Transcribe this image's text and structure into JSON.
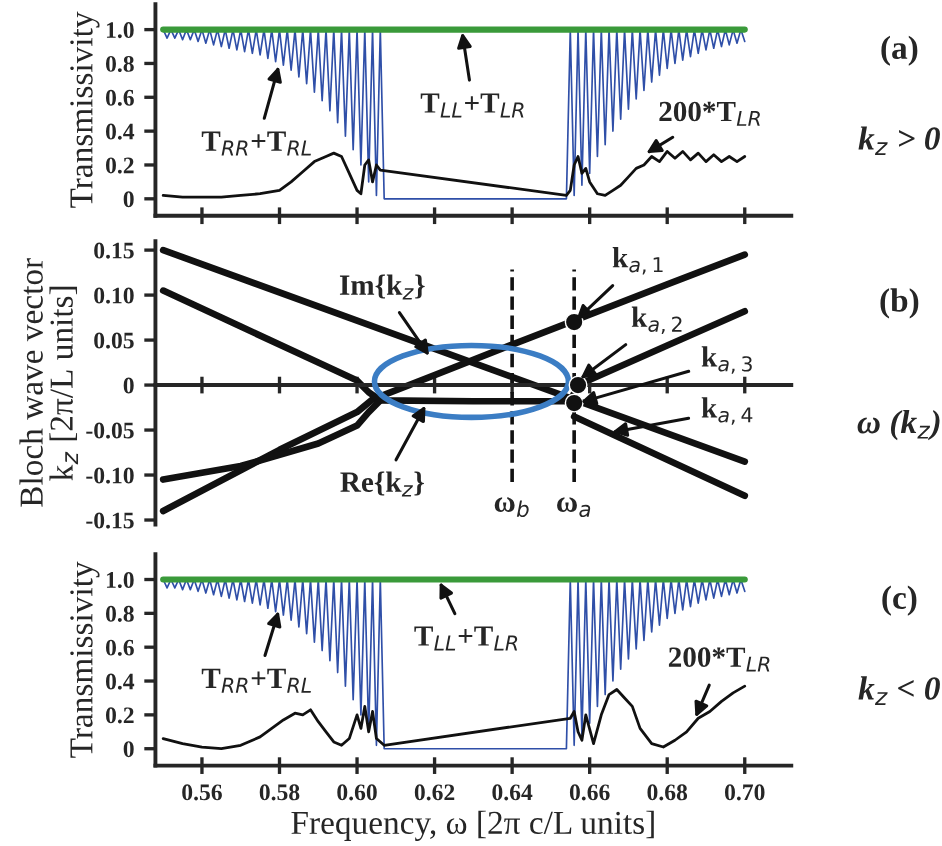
{
  "chart_data": [
    {
      "type": "line",
      "ylabel": "Transmissivity",
      "xlim": [
        0.548,
        0.712
      ],
      "ylim": [
        -0.1,
        1.15
      ],
      "xticks": [
        {
          "value": 0.56,
          "label": null
        },
        {
          "value": 0.58,
          "label": null
        },
        {
          "value": 0.6,
          "label": null
        },
        {
          "value": 0.62,
          "label": null
        },
        {
          "value": 0.64,
          "label": null
        },
        {
          "value": 0.66,
          "label": null
        },
        {
          "value": 0.68,
          "label": null
        },
        {
          "value": 0.7,
          "label": null
        }
      ],
      "yticks": [
        0,
        0.2,
        0.4,
        0.6,
        0.8,
        {
          "value": 1.0,
          "label": "1.0"
        }
      ],
      "tick_labels": "y",
      "series": [
        {
          "color": "#2f4fa8",
          "x": [
            0.55,
            0.551,
            0.552,
            0.553,
            0.554,
            0.555,
            0.556,
            0.557,
            0.558,
            0.559,
            0.56,
            0.561,
            0.562,
            0.563,
            0.564,
            0.565,
            0.566,
            0.567,
            0.568,
            0.569,
            0.57,
            0.571,
            0.572,
            0.573,
            0.574,
            0.575,
            0.576,
            0.577,
            0.578,
            0.579,
            0.58,
            0.581,
            0.582,
            0.583,
            0.584,
            0.585,
            0.586,
            0.587,
            0.588,
            0.589,
            0.59,
            0.591,
            0.592,
            0.593,
            0.594,
            0.595,
            0.596,
            0.597,
            0.598,
            0.599,
            0.6,
            0.601,
            0.602,
            0.603,
            0.604,
            0.605,
            0.606,
            0.607,
            0.654,
            0.655,
            0.656,
            0.657,
            0.658,
            0.659,
            0.66,
            0.661,
            0.662,
            0.663,
            0.664,
            0.665,
            0.666,
            0.667,
            0.668,
            0.669,
            0.67,
            0.671,
            0.672,
            0.673,
            0.674,
            0.675,
            0.676,
            0.677,
            0.678,
            0.679,
            0.68,
            0.681,
            0.682,
            0.683,
            0.684,
            0.685,
            0.686,
            0.687,
            0.688,
            0.689,
            0.69,
            0.691,
            0.692,
            0.693,
            0.694,
            0.695,
            0.696,
            0.697,
            0.698,
            0.699,
            0.7
          ],
          "values": [
            1,
            0.95,
            1,
            0.95,
            1,
            0.94,
            1,
            0.94,
            1,
            0.93,
            1,
            0.92,
            1,
            0.91,
            1,
            0.9,
            1,
            0.89,
            1,
            0.88,
            1,
            0.87,
            1,
            0.86,
            1,
            0.85,
            1,
            0.83,
            1,
            0.81,
            1,
            0.79,
            1,
            0.76,
            1,
            0.72,
            1,
            0.68,
            1,
            0.63,
            1,
            0.58,
            1,
            0.52,
            1,
            0.45,
            1,
            0.37,
            1,
            0.29,
            1,
            0.2,
            1,
            0.1,
            1,
            0.02,
            1,
            0,
            0,
            1,
            0.02,
            1,
            0.08,
            1,
            0.15,
            1,
            0.25,
            1,
            0.32,
            1,
            0.4,
            1,
            0.47,
            1,
            0.53,
            1,
            0.59,
            1,
            0.64,
            1,
            0.69,
            1,
            0.73,
            1,
            0.77,
            1,
            0.8,
            1,
            0.82,
            1,
            0.84,
            1,
            0.86,
            1,
            0.88,
            1,
            0.89,
            1,
            0.9,
            1,
            0.91,
            1,
            0.92,
            1,
            0.93
          ]
        },
        {
          "color": "#3a9a3a",
          "x": [
            0.55,
            0.7
          ],
          "values": [
            1.0,
            1.0
          ]
        },
        {
          "color": "#111111",
          "x": [
            0.55,
            0.555,
            0.56,
            0.565,
            0.57,
            0.575,
            0.58,
            0.583,
            0.586,
            0.589,
            0.592,
            0.594,
            0.596,
            0.598,
            0.6,
            0.601,
            0.602,
            0.603,
            0.604,
            0.605,
            0.606,
            0.654,
            0.655,
            0.656,
            0.657,
            0.658,
            0.659,
            0.66,
            0.662,
            0.664,
            0.666,
            0.668,
            0.67,
            0.672,
            0.674,
            0.676,
            0.678,
            0.68,
            0.682,
            0.684,
            0.686,
            0.688,
            0.69,
            0.692,
            0.694,
            0.696,
            0.698,
            0.7
          ],
          "values": [
            0.02,
            0.01,
            0.01,
            0.01,
            0.02,
            0.03,
            0.05,
            0.1,
            0.16,
            0.22,
            0.25,
            0.27,
            0.25,
            0.15,
            0.05,
            0.03,
            0.2,
            0.23,
            0.1,
            0.2,
            0.17,
            0.02,
            0.05,
            0.2,
            0.25,
            0.15,
            0.18,
            0.1,
            0.03,
            0.02,
            0.05,
            0.08,
            0.13,
            0.18,
            0.2,
            0.25,
            0.22,
            0.28,
            0.24,
            0.28,
            0.23,
            0.27,
            0.22,
            0.26,
            0.22,
            0.25,
            0.22,
            0.25
          ]
        }
      ],
      "annotations": [
        {
          "text": "T$_{RR}$+T$_{RL}$",
          "x": 0.58,
          "y": 0.8
        },
        {
          "text": "T$_{LL}$+T$_{LR}$",
          "x": 0.627,
          "y": 1.0
        },
        {
          "text": "200*T$_{LR}$",
          "x": 0.674,
          "y": 0.26
        },
        "(a)",
        "k$_{z}$ > 0"
      ]
    },
    {
      "type": "line",
      "ylabel": "Bloch wave vector\nk$_{z}$ [2π/L units]",
      "xlim": [
        0.548,
        0.712
      ],
      "ylim": [
        -0.155,
        0.16
      ],
      "xticks": [
        {
          "value": 0.56,
          "label": null
        },
        {
          "value": 0.58,
          "label": null
        },
        {
          "value": 0.6,
          "label": null
        },
        {
          "value": 0.62,
          "label": null
        },
        {
          "value": 0.64,
          "label": null
        },
        {
          "value": 0.66,
          "label": null
        },
        {
          "value": 0.68,
          "label": null
        },
        {
          "value": 0.7,
          "label": null
        }
      ],
      "yticks": [
        {
          "value": 0.15,
          "label": "0.15"
        },
        {
          "value": 0.1,
          "label": "0.10"
        },
        {
          "value": 0.05,
          "label": "0.05"
        },
        {
          "value": 0,
          "label": "0"
        },
        {
          "value": -0.05,
          "label": "-0.05"
        },
        {
          "value": -0.1,
          "label": "-0.10"
        },
        {
          "value": -0.15,
          "label": "-0.15"
        }
      ],
      "tick_labels": "y",
      "marker": "none",
      "series": [
        {
          "color": "#111111",
          "x": [
            0.55,
            0.7
          ],
          "values": [
            0.15,
            -0.085
          ]
        },
        {
          "color": "#111111",
          "x": [
            0.55,
            0.58,
            0.6,
            0.604,
            0.62,
            0.64,
            0.655,
            0.68,
            0.7
          ],
          "values": [
            -0.14,
            -0.072,
            -0.03,
            -0.016,
            0.011,
            0.045,
            0.07,
            0.112,
            0.145
          ]
        },
        {
          "color": "#111111",
          "x": [
            0.55,
            0.57,
            0.59,
            0.6,
            0.603,
            0.606,
            0.63,
            0.655,
            0.657,
            0.68,
            0.7
          ],
          "values": [
            0.105,
            0.065,
            0.025,
            0.005,
            -0.008,
            -0.017,
            -0.018,
            -0.018,
            0.0,
            0.044,
            0.082
          ]
        },
        {
          "color": "#111111",
          "x": [
            0.55,
            0.57,
            0.59,
            0.6,
            0.603,
            0.606
          ],
          "values": [
            -0.105,
            -0.09,
            -0.065,
            -0.045,
            -0.03,
            -0.017
          ]
        },
        {
          "color": "#111111",
          "x": [
            0.656,
            0.7
          ],
          "values": [
            -0.035,
            -0.123
          ]
        },
        {
          "type": "scatter",
          "marker": "circle",
          "color": "#111111",
          "x": [
            0.656,
            0.657,
            0.656
          ],
          "values": [
            0.07,
            0.0,
            -0.02
          ]
        }
      ],
      "ref_lines": [
        {
          "axis": "x",
          "value": 0.64,
          "label": "ω$_{b}$",
          "line_style": "dashed"
        },
        {
          "axis": "x",
          "value": 0.656,
          "label": "ω$_{a}$",
          "line_style": "dashed"
        }
      ],
      "annotations": [
        {
          "text": "Im{k$_{z}$}",
          "x": 0.619,
          "y": 0.03
        },
        {
          "text": "Re{k$_{z}$}",
          "x": 0.618,
          "y": -0.02
        },
        {
          "text": "k$_{a,1}$",
          "x": 0.656,
          "y": 0.07
        },
        {
          "text": "k$_{a,2}$",
          "x": 0.657,
          "y": 0.005
        },
        {
          "text": "k$_{a,3}$",
          "x": 0.657,
          "y": -0.02
        },
        {
          "text": "k$_{a,4}$",
          "x": 0.665,
          "y": -0.053
        },
        "(b)",
        "ω (k$_{z}$)"
      ]
    },
    {
      "type": "line",
      "ylabel": "Transmissivity",
      "xlabel": "Frequency, ω [2π c/L units]",
      "xlim": [
        0.548,
        0.712
      ],
      "ylim": [
        -0.1,
        1.15
      ],
      "xticks": [
        {
          "value": 0.56,
          "label": "0.56"
        },
        {
          "value": 0.58,
          "label": "0.58"
        },
        {
          "value": 0.6,
          "label": "0.60"
        },
        {
          "value": 0.62,
          "label": "0.62"
        },
        {
          "value": 0.64,
          "label": "0.64"
        },
        {
          "value": 0.66,
          "label": "0.66"
        },
        {
          "value": 0.68,
          "label": "0.68"
        },
        {
          "value": 0.7,
          "label": "0.70"
        }
      ],
      "yticks": [
        0,
        0.2,
        0.4,
        0.6,
        0.8,
        {
          "value": 1.0,
          "label": "1.0"
        }
      ],
      "series": [
        {
          "color": "#2f4fa8",
          "x": [
            0.55,
            0.551,
            0.552,
            0.553,
            0.554,
            0.555,
            0.556,
            0.557,
            0.558,
            0.559,
            0.56,
            0.561,
            0.562,
            0.563,
            0.564,
            0.565,
            0.566,
            0.567,
            0.568,
            0.569,
            0.57,
            0.571,
            0.572,
            0.573,
            0.574,
            0.575,
            0.576,
            0.577,
            0.578,
            0.579,
            0.58,
            0.581,
            0.582,
            0.583,
            0.584,
            0.585,
            0.586,
            0.587,
            0.588,
            0.589,
            0.59,
            0.591,
            0.592,
            0.593,
            0.594,
            0.595,
            0.596,
            0.597,
            0.598,
            0.599,
            0.6,
            0.601,
            0.602,
            0.603,
            0.604,
            0.605,
            0.606,
            0.607,
            0.654,
            0.655,
            0.656,
            0.657,
            0.658,
            0.659,
            0.66,
            0.661,
            0.662,
            0.663,
            0.664,
            0.665,
            0.666,
            0.667,
            0.668,
            0.669,
            0.67,
            0.671,
            0.672,
            0.673,
            0.674,
            0.675,
            0.676,
            0.677,
            0.678,
            0.679,
            0.68,
            0.681,
            0.682,
            0.683,
            0.684,
            0.685,
            0.686,
            0.687,
            0.688,
            0.689,
            0.69,
            0.691,
            0.692,
            0.693,
            0.694,
            0.695,
            0.696,
            0.697,
            0.698,
            0.699,
            0.7
          ],
          "values": [
            1,
            0.95,
            1,
            0.95,
            1,
            0.94,
            1,
            0.94,
            1,
            0.93,
            1,
            0.92,
            1,
            0.91,
            1,
            0.9,
            1,
            0.89,
            1,
            0.88,
            1,
            0.87,
            1,
            0.86,
            1,
            0.85,
            1,
            0.83,
            1,
            0.81,
            1,
            0.79,
            1,
            0.76,
            1,
            0.72,
            1,
            0.68,
            1,
            0.63,
            1,
            0.58,
            1,
            0.52,
            1,
            0.45,
            1,
            0.37,
            1,
            0.29,
            1,
            0.2,
            1,
            0.1,
            1,
            0.02,
            1,
            0,
            0,
            1,
            0.02,
            1,
            0.08,
            1,
            0.15,
            1,
            0.25,
            1,
            0.32,
            1,
            0.4,
            1,
            0.47,
            1,
            0.53,
            1,
            0.59,
            1,
            0.64,
            1,
            0.69,
            1,
            0.73,
            1,
            0.77,
            1,
            0.8,
            1,
            0.82,
            1,
            0.84,
            1,
            0.86,
            1,
            0.88,
            1,
            0.89,
            1,
            0.9,
            1,
            0.91,
            1,
            0.92,
            1,
            0.93
          ]
        },
        {
          "color": "#3a9a3a",
          "x": [
            0.55,
            0.7
          ],
          "values": [
            1.0,
            1.0
          ]
        },
        {
          "color": "#111111",
          "x": [
            0.55,
            0.555,
            0.56,
            0.565,
            0.57,
            0.575,
            0.578,
            0.581,
            0.584,
            0.586,
            0.588,
            0.59,
            0.592,
            0.594,
            0.596,
            0.598,
            0.6,
            0.601,
            0.602,
            0.603,
            0.604,
            0.605,
            0.607,
            0.655,
            0.656,
            0.657,
            0.658,
            0.659,
            0.661,
            0.663,
            0.665,
            0.667,
            0.669,
            0.671,
            0.673,
            0.676,
            0.679,
            0.682,
            0.685,
            0.688,
            0.691,
            0.694,
            0.697,
            0.7
          ],
          "values": [
            0.06,
            0.03,
            0.01,
            0.0,
            0.02,
            0.07,
            0.12,
            0.17,
            0.21,
            0.2,
            0.23,
            0.16,
            0.1,
            0.04,
            0.02,
            0.06,
            0.2,
            0.12,
            0.25,
            0.1,
            0.22,
            0.06,
            0.02,
            0.18,
            0.22,
            0.1,
            0.05,
            0.2,
            0.03,
            0.2,
            0.32,
            0.35,
            0.3,
            0.25,
            0.12,
            0.03,
            0.01,
            0.05,
            0.1,
            0.18,
            0.22,
            0.28,
            0.33,
            0.37
          ]
        }
      ],
      "annotations": [
        {
          "text": "T$_{RR}$+T$_{RL}$",
          "x": 0.58,
          "y": 0.83
        },
        {
          "text": "T$_{LL}$+T$_{LR}$",
          "x": 0.621,
          "y": 1.0
        },
        {
          "text": "200*T$_{LR}$",
          "x": 0.687,
          "y": 0.17
        },
        "(c)",
        "k$_{z}$ < 0"
      ]
    }
  ]
}
